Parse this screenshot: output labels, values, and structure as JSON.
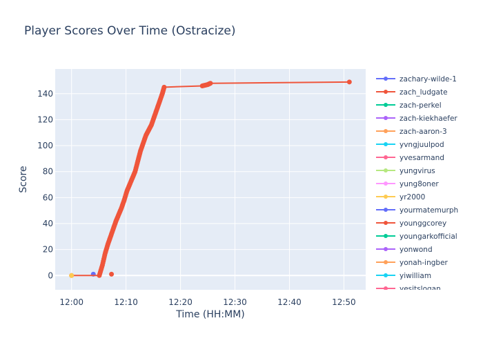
{
  "chart_data": {
    "type": "line",
    "title": "Player Scores Over Time (Ostracize)",
    "xlabel": "Time (HH:MM)",
    "ylabel": "Score",
    "xlim": [
      "11:57:00",
      "12:54:00"
    ],
    "ylim": [
      -11,
      159
    ],
    "x_ticks": [
      "12:00",
      "12:10",
      "12:20",
      "12:30",
      "12:40",
      "12:50"
    ],
    "y_ticks": [
      0,
      20,
      40,
      60,
      80,
      100,
      120,
      140
    ],
    "grid": true,
    "legend_position": "right",
    "series": [
      {
        "name": "zachary-wilde-1",
        "color": "#636efa",
        "points": [
          [
            "12:04:00",
            1
          ]
        ]
      },
      {
        "name": "zach_ludgate",
        "color": "#ef553b",
        "points": [
          [
            "12:00:00",
            0
          ],
          [
            "12:05:06",
            0
          ],
          [
            "12:05:40",
            8
          ],
          [
            "12:06:10",
            17
          ],
          [
            "12:06:40",
            24
          ],
          [
            "12:07:10",
            30
          ],
          [
            "12:07:40",
            36
          ],
          [
            "12:08:10",
            42
          ],
          [
            "12:08:40",
            47
          ],
          [
            "12:09:10",
            52
          ],
          [
            "12:09:40",
            58
          ],
          [
            "12:10:10",
            65
          ],
          [
            "12:10:40",
            70
          ],
          [
            "12:11:10",
            75
          ],
          [
            "12:11:40",
            80
          ],
          [
            "12:12:10",
            88
          ],
          [
            "12:12:40",
            96
          ],
          [
            "12:13:10",
            102
          ],
          [
            "12:13:40",
            108
          ],
          [
            "12:14:10",
            112
          ],
          [
            "12:14:40",
            116
          ],
          [
            "12:15:10",
            122
          ],
          [
            "12:15:40",
            128
          ],
          [
            "12:16:10",
            134
          ],
          [
            "12:16:40",
            140
          ],
          [
            "12:17:00",
            145
          ],
          [
            "12:24:00",
            146
          ],
          [
            "12:25:00",
            147
          ],
          [
            "12:25:30",
            148
          ],
          [
            "12:51:00",
            149
          ]
        ]
      },
      {
        "name": "zach-perkel",
        "color": "#00cc96",
        "points": []
      },
      {
        "name": "zach-kiekhaefer",
        "color": "#ab63fa",
        "points": []
      },
      {
        "name": "zach-aaron-3",
        "color": "#ffa15a",
        "points": []
      },
      {
        "name": "yvngjuulpod",
        "color": "#19d3f3",
        "points": []
      },
      {
        "name": "yvesarmand",
        "color": "#ff6692",
        "points": []
      },
      {
        "name": "yungvirus",
        "color": "#b6e880",
        "points": []
      },
      {
        "name": "yung8oner",
        "color": "#ff97ff",
        "points": []
      },
      {
        "name": "yr2000",
        "color": "#fecb52",
        "points": [
          [
            "12:00:00",
            0
          ]
        ]
      },
      {
        "name": "yourmatemurph",
        "color": "#636efa",
        "points": []
      },
      {
        "name": "younggcorey",
        "color": "#ef553b",
        "points": [
          [
            "12:07:20",
            1
          ]
        ]
      },
      {
        "name": "youngarkofficial",
        "color": "#00cc96",
        "points": []
      },
      {
        "name": "yonwond",
        "color": "#ab63fa",
        "points": []
      },
      {
        "name": "yonah-ingber",
        "color": "#ffa15a",
        "points": []
      },
      {
        "name": "yiwilliam",
        "color": "#19d3f3",
        "points": []
      },
      {
        "name": "yesitslogan",
        "color": "#ff6692",
        "points": []
      }
    ]
  }
}
